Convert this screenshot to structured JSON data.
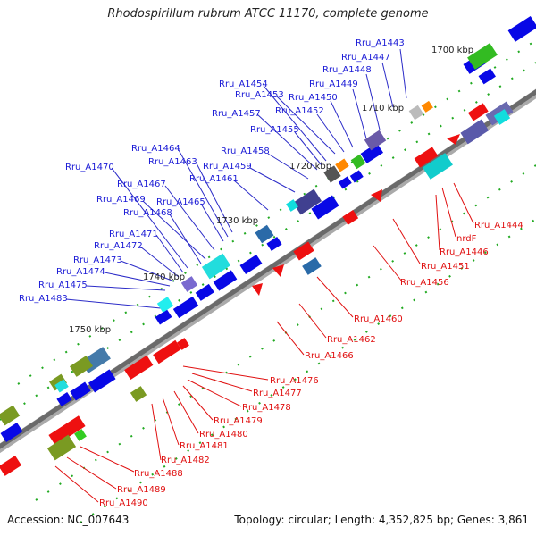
{
  "title": "Rhodospirillum rubrum ATCC 11170, complete genome",
  "footer": {
    "accession": "Accession: NC_007643",
    "summary": "Topology: circular; Length: 4,352,825 bp; Genes: 3,861"
  },
  "ticks": [
    "1700 kbp",
    "1710 kbp",
    "1720 kbp",
    "1730 kbp",
    "1740 kbp",
    "1750 kbp"
  ],
  "labels_forward": [
    "Rru_A1443",
    "Rru_A1447",
    "Rru_A1448",
    "Rru_A1449",
    "Rru_A1450",
    "Rru_A1452",
    "Rru_A1453",
    "Rru_A1454",
    "Rru_A1455",
    "Rru_A1457",
    "Rru_A1458",
    "Rru_A1459",
    "Rru_A1461",
    "Rru_A1463",
    "Rru_A1464",
    "Rru_A1465",
    "Rru_A1467",
    "Rru_A1469",
    "Rru_A1468",
    "Rru_A1470",
    "Rru_A1471",
    "Rru_A1472",
    "Rru_A1473",
    "Rru_A1474",
    "Rru_A1475",
    "Rru_A1483"
  ],
  "labels_reverse": [
    "Rru_A1444",
    "nrdF",
    "Rru_A1446",
    "Rru_A1451",
    "Rru_A1456",
    "Rru_A1460",
    "Rru_A1462",
    "Rru_A1466",
    "Rru_A1476",
    "Rru_A1477",
    "Rru_A1478",
    "Rru_A1479",
    "Rru_A1480",
    "Rru_A1481",
    "Rru_A1482",
    "Rru_A1488",
    "Rru_A1489",
    "Rru_A1490"
  ],
  "colors": {
    "forward_label": "#1a1ad6",
    "reverse_label": "#e01010",
    "forward_gene": "#0a0ae0",
    "reverse_gene": "#ee1111",
    "backbone": "#777777",
    "tick_dash": "#22aa22"
  }
}
